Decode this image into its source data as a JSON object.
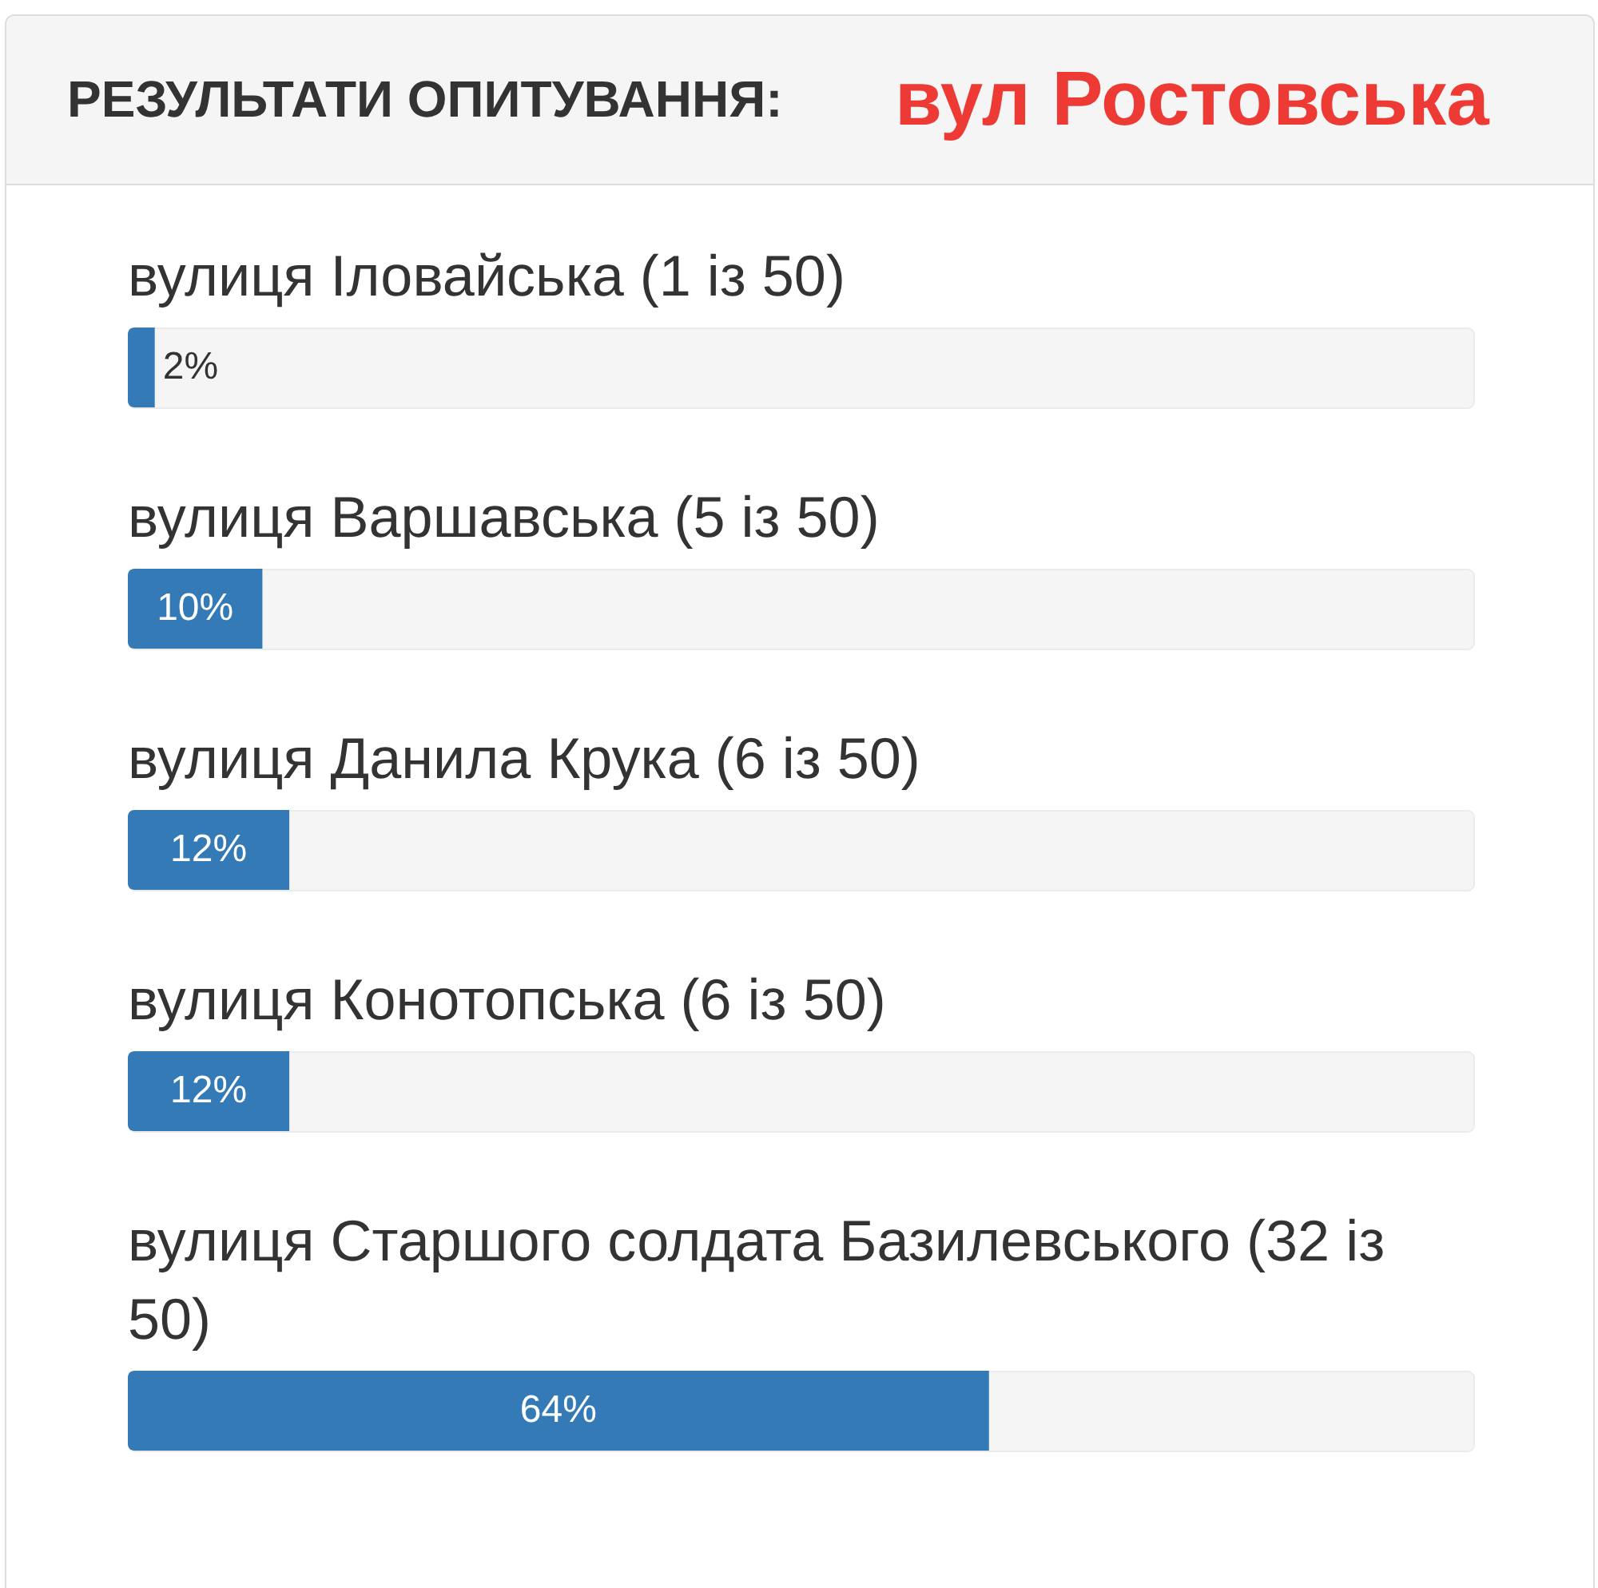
{
  "chart_data": {
    "type": "bar",
    "orientation": "horizontal",
    "title": "РЕЗУЛЬТАТИ ОПИТУВАННЯ:",
    "subtitle": "вул Ростовська",
    "categories": [
      "вулиця Іловайська (1 із 50)",
      "вулиця Варшавська (5 із 50)",
      "вулиця Данила Крука (6 із 50)",
      "вулиця Конотопська (6 із 50)",
      "вулиця Старшого солдата Базилевського (32 із 50)"
    ],
    "values": [
      2,
      10,
      12,
      12,
      64
    ],
    "value_labels": [
      "2%",
      "10%",
      "12%",
      "12%",
      "64%"
    ],
    "color": "#337ab7",
    "xlim": [
      0,
      100
    ],
    "tick_labels": false
  }
}
